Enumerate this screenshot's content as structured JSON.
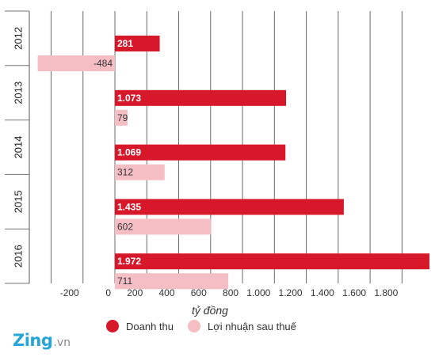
{
  "chart_data": {
    "type": "bar",
    "orientation": "horizontal",
    "categories": [
      "2012",
      "2013",
      "2014",
      "2015",
      "2016"
    ],
    "series": [
      {
        "name": "Doanh thu",
        "color": "#d7182a",
        "values": [
          281,
          1073,
          1069,
          1435,
          1972
        ],
        "labels": [
          "281",
          "1.073",
          "1.069",
          "1.435",
          "1.972"
        ]
      },
      {
        "name": "Lợi nhuận sau thuế",
        "color": "#f4bec4",
        "values": [
          -484,
          79,
          312,
          602,
          711
        ],
        "labels": [
          "-484",
          "79",
          "312",
          "602",
          "711"
        ]
      }
    ],
    "xticks": [
      -200,
      0,
      200,
      400,
      600,
      800,
      1000,
      1200,
      1400,
      1600,
      1800
    ],
    "xtick_labels": [
      "-200",
      "0",
      "200",
      "400",
      "600",
      "800",
      "1.000",
      "1.200",
      "1.400",
      "1.600",
      "1.800"
    ],
    "xlim": [
      -484,
      1972
    ],
    "xlabel": "tỷ đồng",
    "ylabel": "",
    "grid": true,
    "legend": "bottom"
  },
  "branding": {
    "logo_main": "Zing",
    "logo_suffix": ".vn"
  }
}
